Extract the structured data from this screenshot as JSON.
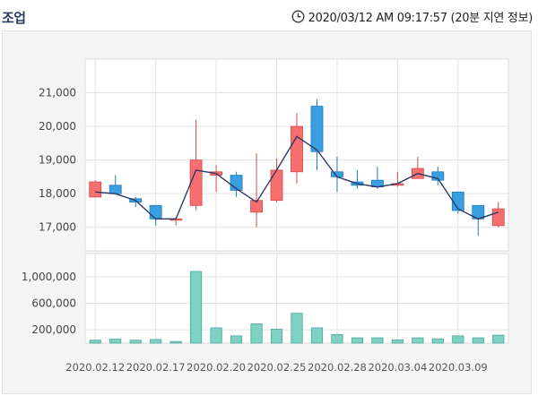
{
  "header": {
    "title": "조업",
    "timestamp": "2020/03/12 AM 09:17:57 (20분 지연 정보)",
    "clock_icon": "clock-icon"
  },
  "colors": {
    "up_fill": "#f76e6e",
    "up_stroke": "#d44a4a",
    "down_fill": "#3a9fe0",
    "down_stroke": "#1f7cc0",
    "ma_line": "#2d3a66",
    "volume_fill": "#7fd1c3",
    "volume_stroke": "#4aa89a",
    "panel_bg": "#f5f5f5",
    "grid": "#dcdcdc"
  },
  "chart_data": [
    {
      "type": "candlestick",
      "y_ticks": [
        "21,000",
        "20,000",
        "19,000",
        "18,000",
        "17,000"
      ],
      "y_tick_values": [
        21000,
        20000,
        19000,
        18000,
        17000
      ],
      "ylim": [
        16300,
        22000
      ],
      "grid": true,
      "x_tick_labels": [
        "2020.02.12",
        "2020.02.17",
        "2020.02.20",
        "2020.02.25",
        "2020.02.28",
        "2020.03.04",
        "2020.03.09"
      ],
      "x_tick_indices": [
        0,
        3,
        6,
        9,
        12,
        15,
        18
      ],
      "candles": [
        {
          "open": 17900,
          "close": 18350,
          "high": 18400,
          "low": 17900
        },
        {
          "open": 18250,
          "close": 18000,
          "high": 18550,
          "low": 18000
        },
        {
          "open": 17850,
          "close": 17750,
          "high": 17900,
          "low": 17600
        },
        {
          "open": 17650,
          "close": 17250,
          "high": 17650,
          "low": 17050
        },
        {
          "open": 17250,
          "close": 17250,
          "high": 17300,
          "low": 17050
        },
        {
          "open": 17650,
          "close": 19000,
          "high": 20200,
          "low": 17500
        },
        {
          "open": 18550,
          "close": 18650,
          "high": 18850,
          "low": 18050
        },
        {
          "open": 18550,
          "close": 18100,
          "high": 18650,
          "low": 17900
        },
        {
          "open": 17450,
          "close": 17800,
          "high": 19200,
          "low": 17000
        },
        {
          "open": 17800,
          "close": 18700,
          "high": 19050,
          "low": 17750
        },
        {
          "open": 18650,
          "close": 20000,
          "high": 20400,
          "low": 18300
        },
        {
          "open": 20600,
          "close": 19250,
          "high": 20800,
          "low": 18700
        },
        {
          "open": 18650,
          "close": 18500,
          "high": 19100,
          "low": 18050
        },
        {
          "open": 18350,
          "close": 18250,
          "high": 18700,
          "low": 18150
        },
        {
          "open": 18400,
          "close": 18200,
          "high": 18800,
          "low": 18150
        },
        {
          "open": 18250,
          "close": 18300,
          "high": 18650,
          "low": 18200
        },
        {
          "open": 18450,
          "close": 18750,
          "high": 19100,
          "low": 18450
        },
        {
          "open": 18650,
          "close": 18400,
          "high": 18800,
          "low": 18250
        },
        {
          "open": 18050,
          "close": 17500,
          "high": 18050,
          "low": 17400
        },
        {
          "open": 17650,
          "close": 17250,
          "high": 17650,
          "low": 16750
        },
        {
          "open": 17050,
          "close": 17550,
          "high": 17750,
          "low": 17000
        }
      ],
      "line": [
        18050,
        18000,
        17800,
        17250,
        17250,
        18700,
        18600,
        18150,
        17750,
        18700,
        19700,
        19300,
        18500,
        18300,
        18200,
        18300,
        18600,
        18450,
        17550,
        17250,
        17450
      ]
    },
    {
      "type": "bar",
      "y_ticks": [
        "1,000,000",
        "600,000",
        "200,000"
      ],
      "y_tick_values": [
        1000000,
        600000,
        200000
      ],
      "ylim": [
        0,
        1350000
      ],
      "grid": true,
      "values": [
        45000,
        60000,
        45000,
        55000,
        25000,
        1080000,
        230000,
        110000,
        290000,
        210000,
        450000,
        230000,
        130000,
        80000,
        80000,
        50000,
        80000,
        65000,
        110000,
        80000,
        120000
      ]
    }
  ]
}
